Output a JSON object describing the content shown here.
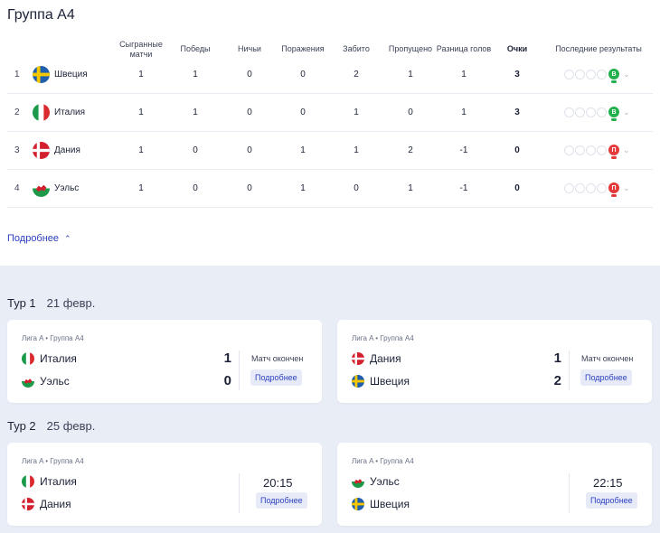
{
  "group_title": "Группа А4",
  "table": {
    "headers": {
      "played_l1": "Сыгранные",
      "played_l2": "матчи",
      "wins": "Победы",
      "draws": "Ничьи",
      "losses": "Поражения",
      "scored": "Забито",
      "conceded": "Пропущено",
      "diff": "Разница голов",
      "points": "Очки",
      "form": "Последние результаты"
    },
    "rows": [
      {
        "pos": "1",
        "team": "Швеция",
        "flag": "sweden-flag",
        "played": "1",
        "wins": "1",
        "draws": "0",
        "losses": "0",
        "scored": "2",
        "conceded": "1",
        "diff": "1",
        "points": "3",
        "result": "В",
        "result_type": "win"
      },
      {
        "pos": "2",
        "team": "Италия",
        "flag": "italy-flag",
        "played": "1",
        "wins": "1",
        "draws": "0",
        "losses": "0",
        "scored": "1",
        "conceded": "0",
        "diff": "1",
        "points": "3",
        "result": "В",
        "result_type": "win"
      },
      {
        "pos": "3",
        "team": "Дания",
        "flag": "denmark-flag",
        "played": "1",
        "wins": "0",
        "draws": "0",
        "losses": "1",
        "scored": "1",
        "conceded": "2",
        "diff": "-1",
        "points": "0",
        "result": "П",
        "result_type": "lose"
      },
      {
        "pos": "4",
        "team": "Уэльс",
        "flag": "wales-flag",
        "played": "1",
        "wins": "0",
        "draws": "0",
        "losses": "1",
        "scored": "0",
        "conceded": "1",
        "diff": "-1",
        "points": "0",
        "result": "П",
        "result_type": "lose"
      }
    ]
  },
  "more_link": "Подробнее",
  "rounds": [
    {
      "name": "Тур 1",
      "date": "21 февр.",
      "matches": [
        {
          "meta": "Лига A • Группа A4",
          "home": "Италия",
          "away": "Уэльс",
          "home_score": "1",
          "away_score": "0",
          "status": "Матч окончен",
          "button": "Подробнее"
        },
        {
          "meta": "Лига A • Группа A4",
          "home": "Дания",
          "away": "Швеция",
          "home_score": "1",
          "away_score": "2",
          "status": "Матч окончен",
          "button": "Подробнее"
        }
      ]
    },
    {
      "name": "Тур 2",
      "date": "25 февр.",
      "matches": [
        {
          "meta": "Лига A • Группа A4",
          "home": "Италия",
          "away": "Дания",
          "time": "20:15",
          "button": "Подробнее"
        },
        {
          "meta": "Лига A • Группа A4",
          "home": "Уэльс",
          "away": "Швеция",
          "time": "22:15",
          "button": "Подробнее"
        }
      ]
    }
  ],
  "colors": {
    "accent": "#2c3fbf",
    "win": "#21b04b",
    "lose": "#e53a3a",
    "section_bg": "#e9edf6"
  }
}
